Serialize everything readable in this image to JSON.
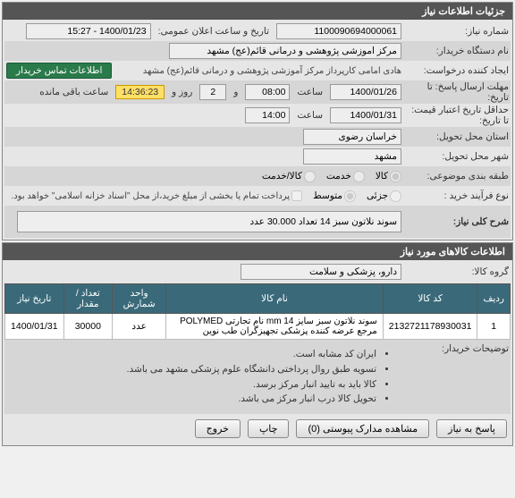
{
  "panels": {
    "main_title": "جزئیات اطلاعات نیاز",
    "items_title": "اطلاعات کالاهای مورد نیاز"
  },
  "labels": {
    "req_no": "شماره نیاز:",
    "public_date": "تاریخ و ساعت اعلان عمومی:",
    "buyer_name": "نام دستگاه خریدار:",
    "requester": "ایجاد کننده درخواست:",
    "contact_btn": "اطلاعات تماس خریدار",
    "deadline": "مهلت ارسال پاسخ: تا تاریخ:",
    "time": "ساعت",
    "and": "و",
    "days": "روز و",
    "remaining": "ساعت باقی مانده",
    "validity": "حداقل تاریخ اعتبار قیمت: تا تاریخ:",
    "province": "استان محل تحویل:",
    "city": "شهر محل تحویل:",
    "subject_type": "طبقه بندی موضوعی:",
    "good": "کالا",
    "service": "خدمت",
    "good_service": "کالا/خدمت",
    "process_type": "نوع فرآیند خرید :",
    "low": "جزئی",
    "mid": "متوسط",
    "partial_pay": "پرداخت تمام یا بخشی از مبلغ خرید،از محل \"اسناد خزانه اسلامی\" خواهد بود.",
    "desc": "شرح کلی نیاز:",
    "group": "گروه کالا:",
    "buyer_notes": "توضیحات خریدار:",
    "reply": "پاسخ به نیاز",
    "attachments": "مشاهده مدارک پیوستی (0)",
    "print": "چاپ",
    "back": "خروج"
  },
  "values": {
    "req_no": "1100090694000061",
    "public_date": "1400/01/23 - 15:27",
    "buyer_name": "مرکز آموزشی پژوهشی و درمانی قائم(عج) مشهد",
    "requester": "هادی امامی کارپرداز مرکز آموزشی پژوهشی و درمانی قائم(عج) مشهد",
    "deadline_date": "1400/01/26",
    "deadline_time": "08:00",
    "days_left": "2",
    "countdown": "14:36:23",
    "validity_date": "1400/01/31",
    "validity_time": "14:00",
    "province": "خراسان رضوی",
    "city": "مشهد",
    "desc": "سوند نلاتون سبز 14 تعداد 30.000 عدد",
    "group": "دارو، پزشکی و سلامت"
  },
  "table": {
    "cols": [
      "ردیف",
      "کد کالا",
      "نام کالا",
      "واحد شمارش",
      "تعداد / مقدار",
      "تاریخ نیاز"
    ],
    "rows": [
      [
        "1",
        "2132721178930031",
        "سوند نلاتون سبز سایز mm 14 نام تجارتی POLYMED مرجع عرضه کننده پزشکی تجهیزگران طب نوین",
        "عدد",
        "30000",
        "1400/01/31"
      ]
    ]
  },
  "notes": [
    "ایران کد مشابه است.",
    "تسویه طبق روال پرداختی دانشگاه علوم پزشکی مشهد می باشد.",
    "کالا باید به تایید انبار مرکز برسد.",
    "تحویل کالا درب انبار مرکز می باشد."
  ],
  "colors": {
    "header_bg": "#555555",
    "th_bg": "#3a6a7a",
    "contact_bg": "#2a7a4a",
    "countdown_bg": "#ffe066"
  }
}
